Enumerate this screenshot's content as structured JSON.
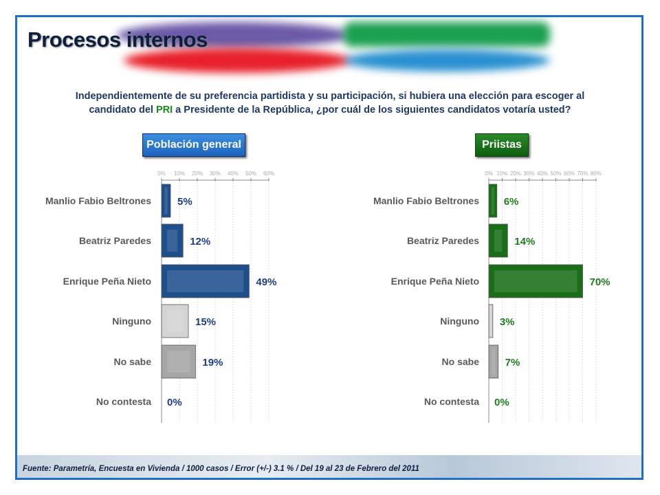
{
  "header": {
    "title": "Procesos internos"
  },
  "question": {
    "part1": "Independientemente de su preferencia partidista y su participación, si hubiera una elección para escoger al",
    "part2a": "candidato del ",
    "pri": "PRI",
    "part2b": " a Presidente de la República, ¿por cuál de los siguientes candidatos votaría usted?"
  },
  "footer": {
    "source": "Fuente: Parametría, Encuesta en Vivienda / 1000 casos / Error (+/-) 3.1 % / Del 19 al 23 de Febrero del 2011"
  },
  "chart_data": [
    {
      "type": "bar",
      "orientation": "horizontal",
      "title": "Población general",
      "categories": [
        "Manlio Fabio Beltrones",
        "Beatriz Paredes",
        "Enrique Peña Nieto",
        "Ninguno",
        "No sabe",
        "No contesta"
      ],
      "values": [
        5,
        12,
        49,
        15,
        19,
        0
      ],
      "labels": [
        "5%",
        "12%",
        "49%",
        "15%",
        "19%",
        "0%"
      ],
      "xlim": [
        0,
        60
      ],
      "ticks": [
        "0%",
        "10%",
        "20%",
        "30%",
        "40%",
        "50%",
        "60%"
      ],
      "grid": true,
      "colors": [
        "#1f4e8c",
        "#1f4e8c",
        "#1f4e8c",
        "#d4d4d4",
        "#a6a6a6",
        "#a6a6a6"
      ],
      "label_color": "#1f3c88"
    },
    {
      "type": "bar",
      "orientation": "horizontal",
      "title": "Priistas",
      "categories": [
        "Manlio Fabio Beltrones",
        "Beatriz Paredes",
        "Enrique Peña Nieto",
        "Ninguno",
        "No sabe",
        "No contesta"
      ],
      "values": [
        6,
        14,
        70,
        3,
        7,
        0
      ],
      "labels": [
        "6%",
        "14%",
        "70%",
        "3%",
        "7%",
        "0%"
      ],
      "xlim": [
        0,
        80
      ],
      "ticks": [
        "0%",
        "10%",
        "20%",
        "30%",
        "40%",
        "50%",
        "60%",
        "70%",
        "80%"
      ],
      "grid": true,
      "colors": [
        "#1a6e1a",
        "#1a6e1a",
        "#1a6e1a",
        "#d4d4d4",
        "#a6a6a6",
        "#a6a6a6"
      ],
      "label_color": "#1e7b1e"
    }
  ]
}
